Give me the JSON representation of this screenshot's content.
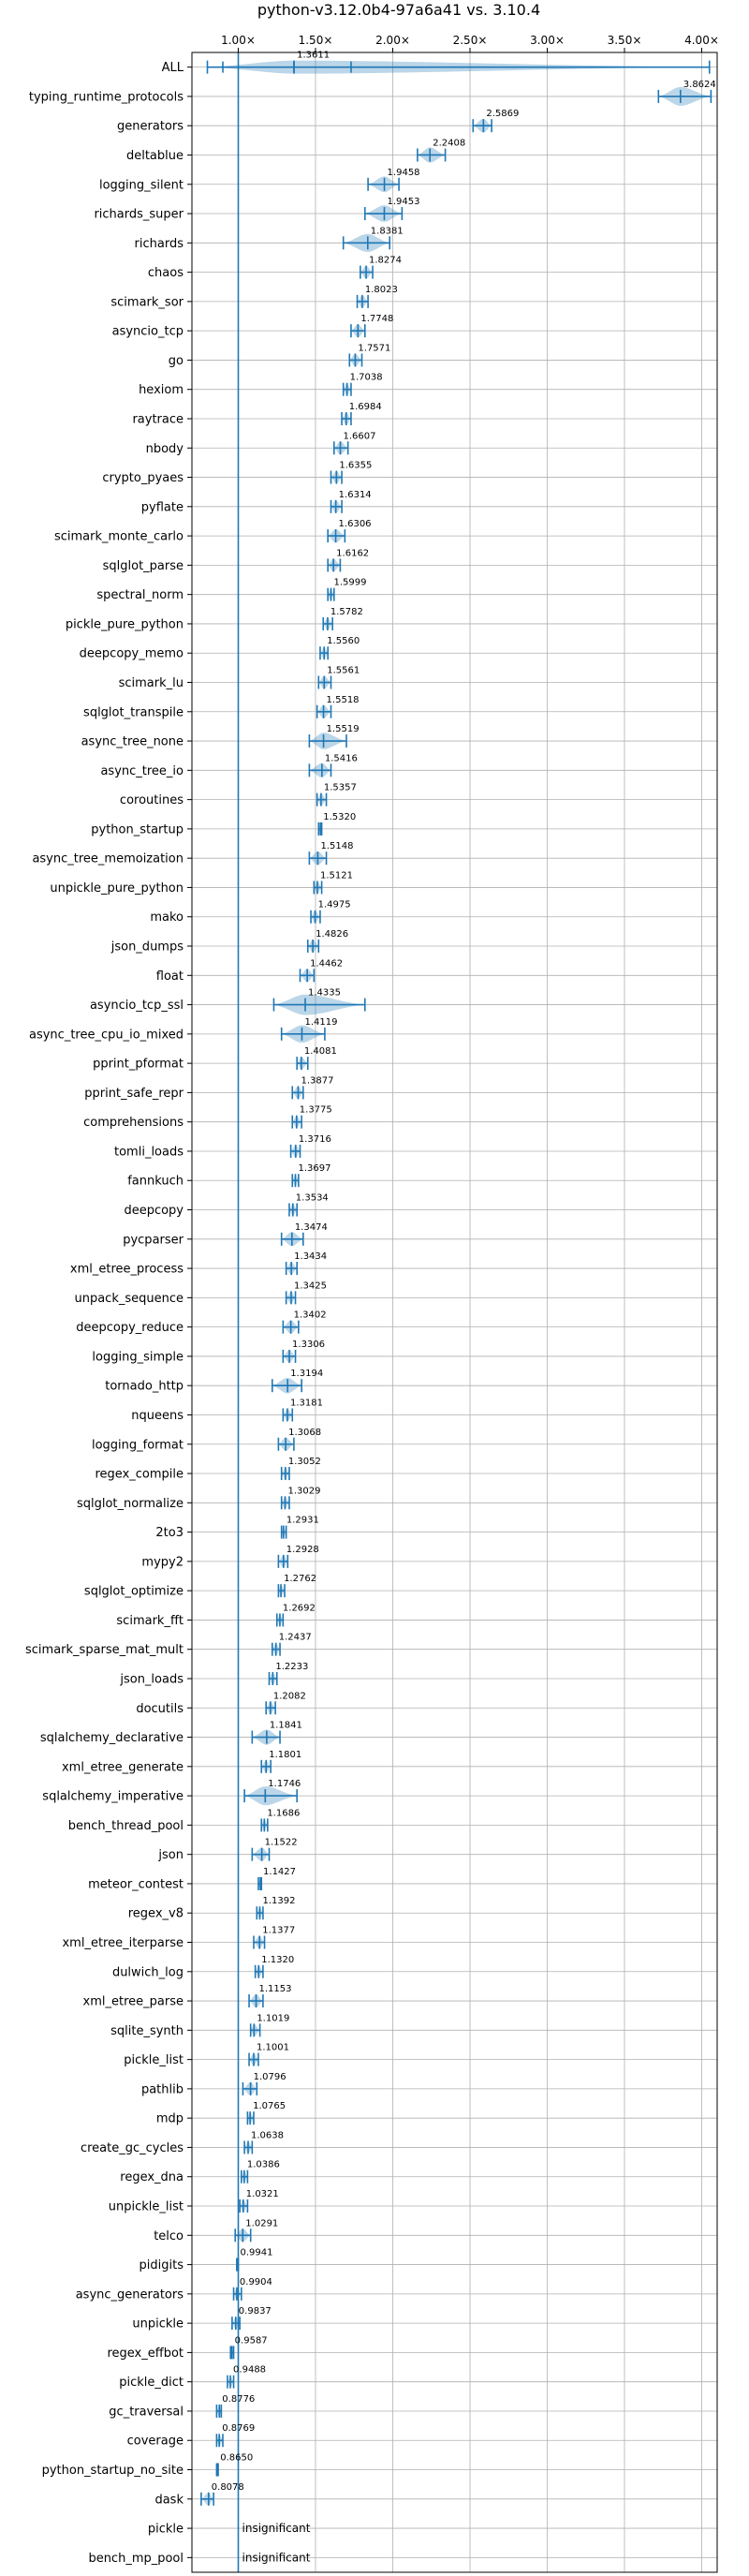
{
  "chart_data": {
    "type": "violin",
    "title": "python-v3.12.0b4-97a6a41 vs. 3.10.4",
    "xlim": [
      0.7,
      4.1
    ],
    "xticks": [
      1.0,
      1.5,
      2.0,
      2.5,
      3.0,
      3.5,
      4.0
    ],
    "xtick_labels": [
      "1.00×",
      "1.50×",
      "2.00×",
      "2.50×",
      "3.00×",
      "3.50×",
      "4.00×"
    ],
    "xticks_position": "top",
    "grid": true,
    "reference_line": 1.0,
    "categories": [
      "ALL",
      "typing_runtime_protocols",
      "generators",
      "deltablue",
      "logging_silent",
      "richards_super",
      "richards",
      "chaos",
      "scimark_sor",
      "asyncio_tcp",
      "go",
      "hexiom",
      "raytrace",
      "nbody",
      "crypto_pyaes",
      "pyflate",
      "scimark_monte_carlo",
      "sqlglot_parse",
      "spectral_norm",
      "pickle_pure_python",
      "deepcopy_memo",
      "scimark_lu",
      "sqlglot_transpile",
      "async_tree_none",
      "async_tree_io",
      "coroutines",
      "python_startup",
      "async_tree_memoization",
      "unpickle_pure_python",
      "mako",
      "json_dumps",
      "float",
      "asyncio_tcp_ssl",
      "async_tree_cpu_io_mixed",
      "pprint_pformat",
      "pprint_safe_repr",
      "comprehensions",
      "tomli_loads",
      "fannkuch",
      "deepcopy",
      "pycparser",
      "xml_etree_process",
      "unpack_sequence",
      "deepcopy_reduce",
      "logging_simple",
      "tornado_http",
      "nqueens",
      "logging_format",
      "regex_compile",
      "sqlglot_normalize",
      "2to3",
      "mypy2",
      "sqlglot_optimize",
      "scimark_fft",
      "scimark_sparse_mat_mult",
      "json_loads",
      "docutils",
      "sqlalchemy_declarative",
      "xml_etree_generate",
      "sqlalchemy_imperative",
      "bench_thread_pool",
      "json",
      "meteor_contest",
      "regex_v8",
      "xml_etree_iterparse",
      "dulwich_log",
      "xml_etree_parse",
      "sqlite_synth",
      "pickle_list",
      "pathlib",
      "mdp",
      "create_gc_cycles",
      "regex_dna",
      "unpickle_list",
      "telco",
      "pidigits",
      "async_generators",
      "unpickle",
      "regex_effbot",
      "pickle_dict",
      "gc_traversal",
      "coverage",
      "python_startup_no_site",
      "dask",
      "pickle",
      "bench_mp_pool"
    ],
    "values": [
      1.3611,
      3.8624,
      2.5869,
      2.2408,
      1.9458,
      1.9453,
      1.8381,
      1.8274,
      1.8023,
      1.7748,
      1.7571,
      1.7038,
      1.6984,
      1.6607,
      1.6355,
      1.6314,
      1.6306,
      1.6162,
      1.5999,
      1.5782,
      1.556,
      1.5561,
      1.5518,
      1.5519,
      1.5416,
      1.5357,
      1.532,
      1.5148,
      1.5121,
      1.4975,
      1.4826,
      1.4462,
      1.4335,
      1.4119,
      1.4081,
      1.3877,
      1.3775,
      1.3716,
      1.3697,
      1.3534,
      1.3474,
      1.3434,
      1.3425,
      1.3402,
      1.3306,
      1.3194,
      1.3181,
      1.3068,
      1.3052,
      1.3029,
      1.2931,
      1.2928,
      1.2762,
      1.2692,
      1.2437,
      1.2233,
      1.2082,
      1.1841,
      1.1801,
      1.1746,
      1.1686,
      1.1522,
      1.1427,
      1.1392,
      1.1377,
      1.132,
      1.1153,
      1.1019,
      1.1001,
      1.0796,
      1.0765,
      1.0638,
      1.0386,
      1.0321,
      1.0291,
      0.9941,
      0.9904,
      0.9837,
      0.9587,
      0.9488,
      0.8776,
      0.8769,
      0.865,
      0.8078,
      null,
      null
    ],
    "value_labels": [
      "1.3611",
      "3.8624",
      "2.5869",
      "2.2408",
      "1.9458",
      "1.9453",
      "1.8381",
      "1.8274",
      "1.8023",
      "1.7748",
      "1.7571",
      "1.7038",
      "1.6984",
      "1.6607",
      "1.6355",
      "1.6314",
      "1.6306",
      "1.6162",
      "1.5999",
      "1.5782",
      "1.5560",
      "1.5561",
      "1.5518",
      "1.5519",
      "1.5416",
      "1.5357",
      "1.5320",
      "1.5148",
      "1.5121",
      "1.4975",
      "1.4826",
      "1.4462",
      "1.4335",
      "1.4119",
      "1.4081",
      "1.3877",
      "1.3775",
      "1.3716",
      "1.3697",
      "1.3534",
      "1.3474",
      "1.3434",
      "1.3425",
      "1.3402",
      "1.3306",
      "1.3194",
      "1.3181",
      "1.3068",
      "1.3052",
      "1.3029",
      "1.2931",
      "1.2928",
      "1.2762",
      "1.2692",
      "1.2437",
      "1.2233",
      "1.2082",
      "1.1841",
      "1.1801",
      "1.1746",
      "1.1686",
      "1.1522",
      "1.1427",
      "1.1392",
      "1.1377",
      "1.1320",
      "1.1153",
      "1.1019",
      "1.1001",
      "1.0796",
      "1.0765",
      "1.0638",
      "1.0386",
      "1.0321",
      "1.0291",
      "0.9941",
      "0.9904",
      "0.9837",
      "0.9587",
      "0.9488",
      "0.8776",
      "0.8769",
      "0.8650",
      "0.8078",
      "insignificant",
      "insignificant"
    ],
    "ranges": [
      [
        0.8,
        4.05
      ],
      [
        3.72,
        4.06
      ],
      [
        2.52,
        2.64
      ],
      [
        2.16,
        2.34
      ],
      [
        1.84,
        2.04
      ],
      [
        1.82,
        2.06
      ],
      [
        1.68,
        1.98
      ],
      [
        1.79,
        1.87
      ],
      [
        1.77,
        1.84
      ],
      [
        1.73,
        1.82
      ],
      [
        1.72,
        1.8
      ],
      [
        1.68,
        1.73
      ],
      [
        1.67,
        1.73
      ],
      [
        1.62,
        1.71
      ],
      [
        1.6,
        1.67
      ],
      [
        1.6,
        1.67
      ],
      [
        1.58,
        1.69
      ],
      [
        1.58,
        1.66
      ],
      [
        1.58,
        1.62
      ],
      [
        1.55,
        1.61
      ],
      [
        1.53,
        1.58
      ],
      [
        1.52,
        1.6
      ],
      [
        1.51,
        1.6
      ],
      [
        1.46,
        1.7
      ],
      [
        1.46,
        1.6
      ],
      [
        1.51,
        1.57
      ],
      [
        1.52,
        1.54
      ],
      [
        1.46,
        1.57
      ],
      [
        1.49,
        1.54
      ],
      [
        1.47,
        1.53
      ],
      [
        1.45,
        1.52
      ],
      [
        1.4,
        1.49
      ],
      [
        1.23,
        1.82
      ],
      [
        1.28,
        1.56
      ],
      [
        1.38,
        1.45
      ],
      [
        1.35,
        1.42
      ],
      [
        1.35,
        1.41
      ],
      [
        1.34,
        1.4
      ],
      [
        1.35,
        1.39
      ],
      [
        1.33,
        1.38
      ],
      [
        1.28,
        1.42
      ],
      [
        1.31,
        1.38
      ],
      [
        1.31,
        1.37
      ],
      [
        1.29,
        1.39
      ],
      [
        1.29,
        1.37
      ],
      [
        1.22,
        1.41
      ],
      [
        1.29,
        1.35
      ],
      [
        1.26,
        1.36
      ],
      [
        1.28,
        1.33
      ],
      [
        1.28,
        1.33
      ],
      [
        1.28,
        1.31
      ],
      [
        1.26,
        1.32
      ],
      [
        1.26,
        1.3
      ],
      [
        1.25,
        1.29
      ],
      [
        1.22,
        1.27
      ],
      [
        1.2,
        1.25
      ],
      [
        1.18,
        1.24
      ],
      [
        1.09,
        1.27
      ],
      [
        1.15,
        1.21
      ],
      [
        1.04,
        1.38
      ],
      [
        1.15,
        1.19
      ],
      [
        1.09,
        1.2
      ],
      [
        1.13,
        1.15
      ],
      [
        1.12,
        1.16
      ],
      [
        1.1,
        1.17
      ],
      [
        1.11,
        1.16
      ],
      [
        1.07,
        1.16
      ],
      [
        1.08,
        1.14
      ],
      [
        1.07,
        1.13
      ],
      [
        1.03,
        1.12
      ],
      [
        1.06,
        1.1
      ],
      [
        1.04,
        1.09
      ],
      [
        1.02,
        1.06
      ],
      [
        1.01,
        1.06
      ],
      [
        0.98,
        1.08
      ],
      [
        0.99,
        1.0
      ],
      [
        0.97,
        1.02
      ],
      [
        0.96,
        1.01
      ],
      [
        0.95,
        0.97
      ],
      [
        0.93,
        0.97
      ],
      [
        0.86,
        0.89
      ],
      [
        0.86,
        0.9
      ],
      [
        0.86,
        0.87
      ],
      [
        0.76,
        0.84
      ],
      null,
      null
    ],
    "all_ticks": [
      0.9,
      1.36,
      1.73
    ],
    "colors": {
      "violin": "#1f77b4",
      "grid": "#b0b0b0"
    }
  }
}
